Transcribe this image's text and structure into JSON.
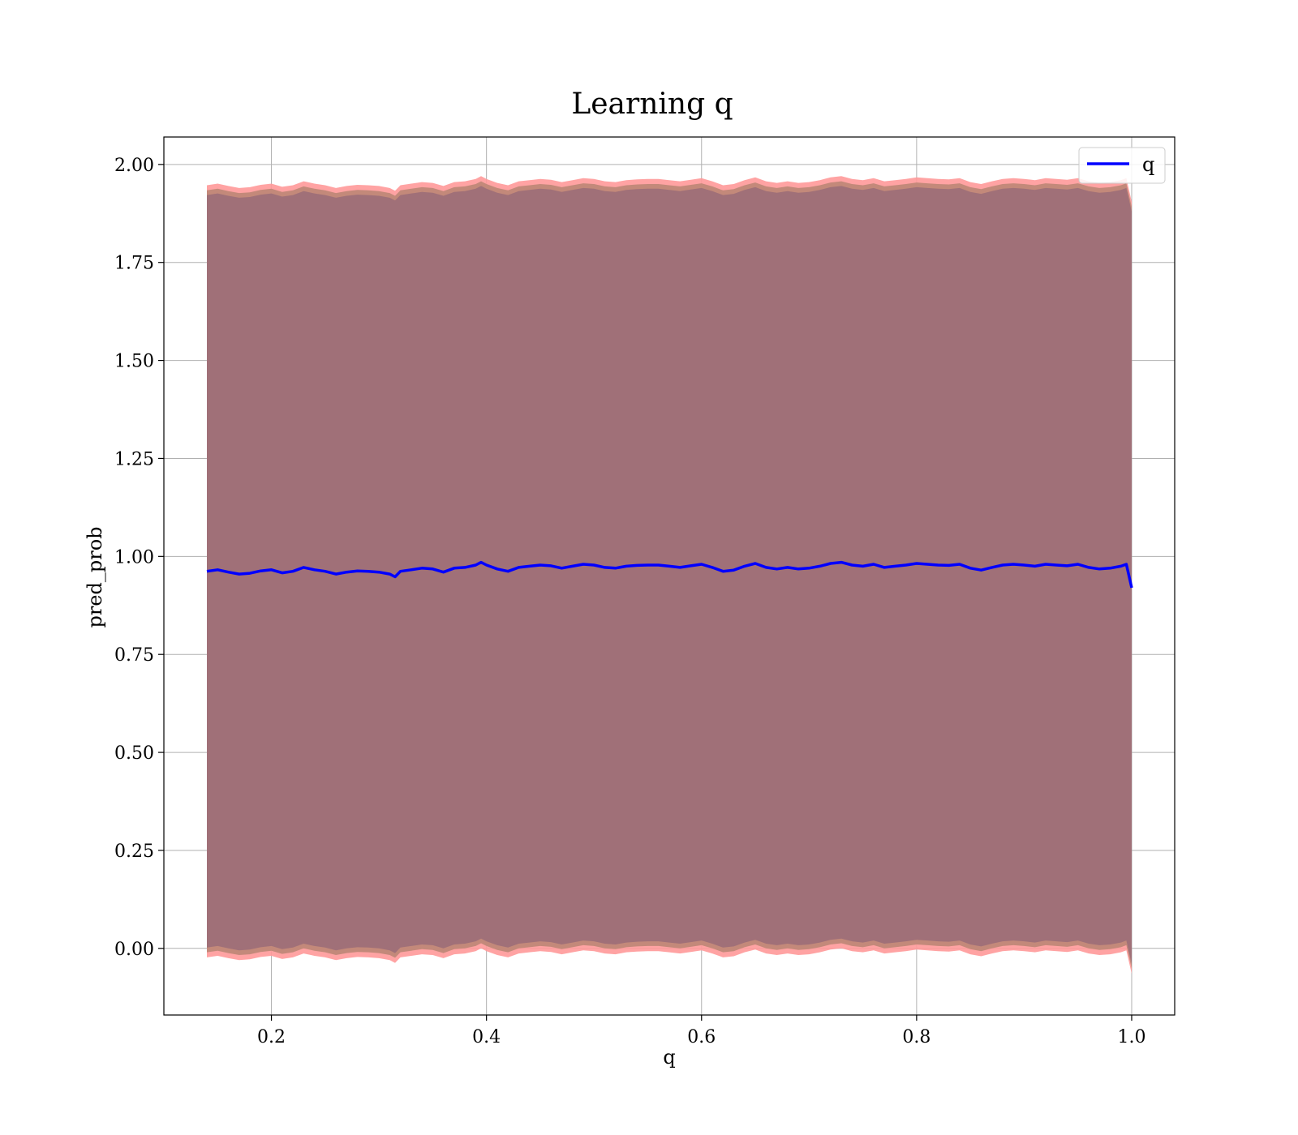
{
  "chart_data": {
    "type": "line",
    "title": "Learning q",
    "xlabel": "q",
    "ylabel": "pred_prob",
    "xlim": [
      0.1,
      1.04
    ],
    "ylim": [
      -0.17,
      2.07
    ],
    "xticks": [
      {
        "value": 0.2,
        "label": "0.2"
      },
      {
        "value": 0.4,
        "label": "0.4"
      },
      {
        "value": 0.6,
        "label": "0.6"
      },
      {
        "value": 0.8,
        "label": "0.8"
      },
      {
        "value": 1.0,
        "label": "1.0"
      }
    ],
    "yticks": [
      {
        "value": 0.0,
        "label": "0.00"
      },
      {
        "value": 0.25,
        "label": "0.25"
      },
      {
        "value": 0.5,
        "label": "0.50"
      },
      {
        "value": 0.75,
        "label": "0.75"
      },
      {
        "value": 1.0,
        "label": "1.00"
      },
      {
        "value": 1.25,
        "label": "1.25"
      },
      {
        "value": 1.5,
        "label": "1.50"
      },
      {
        "value": 1.75,
        "label": "1.75"
      },
      {
        "value": 2.0,
        "label": "2.00"
      }
    ],
    "grid": true,
    "legend": {
      "position": "top-right",
      "entries": [
        "q"
      ]
    },
    "colors": {
      "line": "#0000ff",
      "band_outer": "#ff9999",
      "band_inner": "#a07078",
      "band_mid": "#c08878"
    },
    "series": [
      {
        "name": "q",
        "x": [
          0.14,
          0.15,
          0.16,
          0.17,
          0.18,
          0.19,
          0.2,
          0.21,
          0.22,
          0.23,
          0.24,
          0.25,
          0.26,
          0.27,
          0.28,
          0.29,
          0.3,
          0.31,
          0.315,
          0.32,
          0.33,
          0.34,
          0.35,
          0.36,
          0.37,
          0.38,
          0.39,
          0.395,
          0.4,
          0.41,
          0.42,
          0.43,
          0.44,
          0.45,
          0.46,
          0.47,
          0.48,
          0.49,
          0.5,
          0.51,
          0.52,
          0.53,
          0.54,
          0.55,
          0.56,
          0.57,
          0.58,
          0.59,
          0.6,
          0.61,
          0.62,
          0.63,
          0.64,
          0.65,
          0.66,
          0.67,
          0.68,
          0.69,
          0.7,
          0.71,
          0.72,
          0.73,
          0.74,
          0.75,
          0.76,
          0.77,
          0.78,
          0.79,
          0.8,
          0.81,
          0.82,
          0.83,
          0.84,
          0.85,
          0.86,
          0.87,
          0.88,
          0.89,
          0.9,
          0.91,
          0.92,
          0.93,
          0.94,
          0.95,
          0.96,
          0.97,
          0.98,
          0.99,
          0.995,
          1.0
        ],
        "y": [
          0.962,
          0.966,
          0.96,
          0.955,
          0.957,
          0.963,
          0.966,
          0.958,
          0.962,
          0.972,
          0.966,
          0.962,
          0.955,
          0.96,
          0.963,
          0.962,
          0.96,
          0.955,
          0.948,
          0.962,
          0.966,
          0.97,
          0.968,
          0.96,
          0.97,
          0.972,
          0.978,
          0.985,
          0.978,
          0.968,
          0.962,
          0.972,
          0.975,
          0.978,
          0.976,
          0.97,
          0.975,
          0.98,
          0.978,
          0.972,
          0.97,
          0.975,
          0.977,
          0.978,
          0.978,
          0.975,
          0.972,
          0.976,
          0.98,
          0.972,
          0.962,
          0.965,
          0.975,
          0.982,
          0.972,
          0.968,
          0.972,
          0.968,
          0.97,
          0.975,
          0.982,
          0.985,
          0.978,
          0.975,
          0.98,
          0.972,
          0.975,
          0.978,
          0.982,
          0.98,
          0.978,
          0.977,
          0.98,
          0.97,
          0.965,
          0.972,
          0.978,
          0.98,
          0.978,
          0.975,
          0.98,
          0.978,
          0.976,
          0.98,
          0.972,
          0.968,
          0.97,
          0.975,
          0.98,
          0.92
        ]
      }
    ]
  }
}
